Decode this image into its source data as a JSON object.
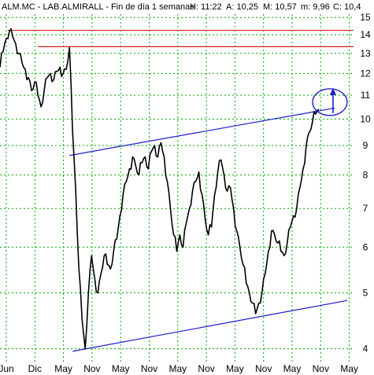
{
  "chart_data": {
    "type": "line",
    "title": "ALM.MC - LAB.ALMIRALL - Fin de día 1 semanas",
    "quote": {
      "H": "H: 11:22",
      "A": "A: 10,25",
      "M": "M: 10,57",
      "m": "m: 9,96",
      "C": "C: 10,4"
    },
    "xlabel": "",
    "ylabel": "",
    "ylim": [
      3.8,
      15.2
    ],
    "log_scale": true,
    "grid": true,
    "y_ticks": [
      "4",
      "5",
      "6",
      "7",
      "8",
      "9",
      "10",
      "11",
      "12",
      "13",
      "14",
      "15"
    ],
    "x_ticks": [
      "Jun",
      "Dic",
      "May",
      "Nov",
      "May",
      "Nov",
      "May",
      "Nov",
      "May",
      "Nov",
      "May",
      "Nov",
      "May"
    ],
    "series": [
      {
        "points": [
          [
            0,
            12.3
          ],
          [
            1,
            13.1
          ],
          [
            2,
            13.8
          ],
          [
            3,
            14.2
          ],
          [
            4,
            13.9
          ],
          [
            5,
            13.5
          ],
          [
            6,
            13.0
          ],
          [
            7,
            12.5
          ],
          [
            8,
            12.2
          ],
          [
            9,
            11.8
          ],
          [
            10,
            11.2
          ],
          [
            11,
            11.6
          ],
          [
            12,
            11.0
          ],
          [
            13,
            10.5
          ],
          [
            14,
            11.2
          ],
          [
            15,
            11.8
          ],
          [
            16,
            12.0
          ],
          [
            17,
            11.7
          ],
          [
            18,
            12.1
          ],
          [
            19,
            12.3
          ],
          [
            20,
            12.0
          ],
          [
            21,
            12.2
          ],
          [
            22,
            13.3
          ],
          [
            23,
            9.5
          ],
          [
            24,
            7.5
          ],
          [
            25,
            5.5
          ],
          [
            26,
            4.5
          ],
          [
            27,
            4.0
          ],
          [
            28,
            5.0
          ],
          [
            29,
            5.8
          ],
          [
            30,
            5.3
          ],
          [
            31,
            5.0
          ],
          [
            32,
            5.4
          ],
          [
            33,
            5.8
          ],
          [
            34,
            5.6
          ],
          [
            35,
            5.5
          ],
          [
            36,
            5.9
          ],
          [
            37,
            6.2
          ],
          [
            38,
            6.8
          ],
          [
            39,
            7.4
          ],
          [
            40,
            7.8
          ],
          [
            41,
            8.2
          ],
          [
            42,
            8.6
          ],
          [
            43,
            8.3
          ],
          [
            44,
            8.0
          ],
          [
            45,
            8.4
          ],
          [
            46,
            8.6
          ],
          [
            47,
            8.2
          ],
          [
            48,
            8.8
          ],
          [
            49,
            9.0
          ],
          [
            50,
            8.6
          ],
          [
            51,
            9.1
          ],
          [
            52,
            8.6
          ],
          [
            53,
            7.8
          ],
          [
            54,
            7.0
          ],
          [
            55,
            6.3
          ],
          [
            56,
            5.9
          ],
          [
            57,
            6.3
          ],
          [
            58,
            6.0
          ],
          [
            59,
            6.6
          ],
          [
            60,
            7.0
          ],
          [
            61,
            7.5
          ],
          [
            62,
            7.8
          ],
          [
            63,
            8.1
          ],
          [
            64,
            7.4
          ],
          [
            65,
            6.7
          ],
          [
            66,
            6.3
          ],
          [
            67,
            6.5
          ],
          [
            68,
            7.4
          ],
          [
            69,
            8.1
          ],
          [
            70,
            8.5
          ],
          [
            71,
            8.0
          ],
          [
            72,
            7.5
          ],
          [
            73,
            7.6
          ],
          [
            74,
            7.0
          ],
          [
            75,
            6.4
          ],
          [
            76,
            6.0
          ],
          [
            77,
            5.6
          ],
          [
            78,
            5.2
          ],
          [
            79,
            5.0
          ],
          [
            80,
            4.8
          ],
          [
            81,
            4.6
          ],
          [
            82,
            4.8
          ],
          [
            83,
            5.0
          ],
          [
            84,
            5.4
          ],
          [
            85,
            5.9
          ],
          [
            86,
            6.4
          ],
          [
            87,
            6.3
          ],
          [
            88,
            6.1
          ],
          [
            89,
            5.9
          ],
          [
            90,
            5.8
          ],
          [
            91,
            6.1
          ],
          [
            92,
            6.5
          ],
          [
            93,
            6.8
          ],
          [
            94,
            7.0
          ],
          [
            95,
            7.6
          ],
          [
            96,
            8.2
          ],
          [
            97,
            9.0
          ],
          [
            98,
            9.5
          ],
          [
            99,
            9.9
          ],
          [
            100,
            10.2
          ],
          [
            101,
            10.4
          ]
        ]
      }
    ],
    "resistance_lines": [
      14.25,
      13.35
    ],
    "channel_upper": [
      [
        22,
        8.65
      ],
      [
        106,
        10.45
      ]
    ],
    "channel_lower": [
      [
        23,
        3.96
      ],
      [
        110,
        4.85
      ]
    ],
    "colors": {
      "price": "#000000",
      "resistance": "#d42020",
      "channel": "#1c1ccc",
      "grid": "#00aa00",
      "highlight": "#1c1ccc"
    }
  }
}
